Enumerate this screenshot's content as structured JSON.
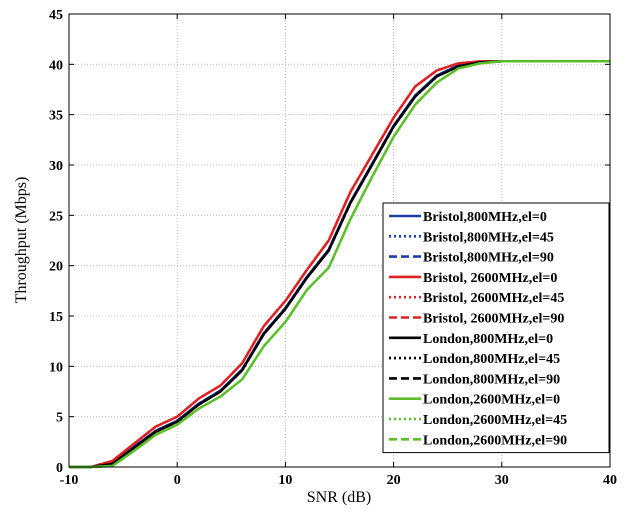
{
  "chart_data": {
    "type": "line",
    "title": "",
    "xlabel": "SNR  (dB)",
    "ylabel": "Throughput (Mbps)",
    "xlim": [
      -10,
      40
    ],
    "ylim": [
      0,
      45
    ],
    "xticks": [
      -10,
      0,
      10,
      20,
      30,
      40
    ],
    "yticks": [
      0,
      5,
      10,
      15,
      20,
      25,
      30,
      35,
      40,
      45
    ],
    "grid": true,
    "legend_position": "lower-right",
    "series": [
      {
        "name": "Bristol,800MHz,el=0",
        "color": "#1f3fa8",
        "dash": "solid",
        "group": "low",
        "x": [
          -10,
          -8,
          -6,
          -4,
          -2,
          0,
          2,
          4,
          6,
          8,
          10,
          12,
          14,
          16,
          18,
          20,
          22,
          24,
          26,
          28,
          30,
          32,
          35,
          40
        ],
        "y": [
          0,
          0,
          0.4,
          2,
          3.6,
          4.6,
          6.3,
          7.6,
          9.7,
          13.3,
          15.8,
          18.9,
          21.6,
          26.3,
          30.1,
          33.9,
          36.9,
          38.9,
          39.9,
          40.2,
          40.3,
          40.3,
          40.3,
          40.3
        ]
      },
      {
        "name": "Bristol,800MHz,el=45",
        "color": "#1f3fa8",
        "dash": "dot",
        "group": "low",
        "x": [
          -10,
          -8,
          -6,
          -4,
          -2,
          0,
          2,
          4,
          6,
          8,
          10,
          12,
          14,
          16,
          18,
          20,
          22,
          24,
          26,
          28,
          30,
          32,
          35,
          40
        ],
        "y": [
          0,
          0,
          0.4,
          2,
          3.6,
          4.6,
          6.3,
          7.6,
          9.7,
          13.3,
          15.8,
          18.9,
          21.6,
          26.3,
          30.1,
          33.9,
          36.9,
          38.9,
          39.9,
          40.2,
          40.3,
          40.3,
          40.3,
          40.3
        ]
      },
      {
        "name": "Bristol,800MHz,el=90",
        "color": "#1f3fa8",
        "dash": "dash",
        "group": "low",
        "x": [
          -10,
          -8,
          -6,
          -4,
          -2,
          0,
          2,
          4,
          6,
          8,
          10,
          12,
          14,
          16,
          18,
          20,
          22,
          24,
          26,
          28,
          30,
          32,
          35,
          40
        ],
        "y": [
          0,
          0,
          0.4,
          2,
          3.6,
          4.6,
          6.3,
          7.6,
          9.7,
          13.3,
          15.8,
          18.9,
          21.6,
          26.3,
          30.1,
          33.9,
          36.9,
          38.9,
          39.9,
          40.2,
          40.3,
          40.3,
          40.3,
          40.3
        ]
      },
      {
        "name": "Bristol, 2600MHz,el=0",
        "color": "#e02020",
        "dash": "solid",
        "group": "high",
        "x": [
          -10,
          -8,
          -6,
          -4,
          -2,
          0,
          2,
          4,
          6,
          8,
          10,
          12,
          14,
          16,
          18,
          20,
          22,
          24,
          26,
          28,
          30,
          32,
          35,
          40
        ],
        "y": [
          0,
          0,
          0.6,
          2.3,
          4,
          5,
          6.8,
          8.1,
          10.3,
          14,
          16.5,
          19.6,
          22.5,
          27.3,
          31,
          34.7,
          37.8,
          39.4,
          40.1,
          40.3,
          40.3,
          40.3,
          40.3,
          40.3
        ]
      },
      {
        "name": "Bristol, 2600MHz,el=45",
        "color": "#e02020",
        "dash": "dot",
        "group": "high",
        "x": [
          -10,
          -8,
          -6,
          -4,
          -2,
          0,
          2,
          4,
          6,
          8,
          10,
          12,
          14,
          16,
          18,
          20,
          22,
          24,
          26,
          28,
          30,
          32,
          35,
          40
        ],
        "y": [
          0,
          0,
          0.6,
          2.3,
          4,
          5,
          6.8,
          8.1,
          10.3,
          14,
          16.5,
          19.6,
          22.5,
          27.3,
          31,
          34.7,
          37.8,
          39.4,
          40.1,
          40.3,
          40.3,
          40.3,
          40.3,
          40.3
        ]
      },
      {
        "name": "Bristol, 2600MHz,el=90",
        "color": "#e02020",
        "dash": "dash",
        "group": "high",
        "x": [
          -10,
          -8,
          -6,
          -4,
          -2,
          0,
          2,
          4,
          6,
          8,
          10,
          12,
          14,
          16,
          18,
          20,
          22,
          24,
          26,
          28,
          30,
          32,
          35,
          40
        ],
        "y": [
          0,
          0,
          0.6,
          2.3,
          4,
          5,
          6.8,
          8.1,
          10.3,
          14,
          16.5,
          19.6,
          22.5,
          27.3,
          31,
          34.7,
          37.8,
          39.4,
          40.1,
          40.3,
          40.3,
          40.3,
          40.3,
          40.3
        ]
      },
      {
        "name": "London,800MHz,el=0",
        "color": "#000000",
        "dash": "solid",
        "group": "low",
        "x": [
          -10,
          -8,
          -6,
          -4,
          -2,
          0,
          2,
          4,
          6,
          8,
          10,
          12,
          14,
          16,
          18,
          20,
          22,
          24,
          26,
          28,
          30,
          32,
          35,
          40
        ],
        "y": [
          0,
          0,
          0.3,
          1.9,
          3.5,
          4.5,
          6.2,
          7.5,
          9.6,
          13.2,
          15.7,
          18.8,
          21.5,
          26.2,
          30,
          33.8,
          36.8,
          38.8,
          39.8,
          40.2,
          40.3,
          40.3,
          40.3,
          40.3
        ]
      },
      {
        "name": "London,800MHz,el=45",
        "color": "#000000",
        "dash": "dot",
        "group": "low",
        "x": [
          -10,
          -8,
          -6,
          -4,
          -2,
          0,
          2,
          4,
          6,
          8,
          10,
          12,
          14,
          16,
          18,
          20,
          22,
          24,
          26,
          28,
          30,
          32,
          35,
          40
        ],
        "y": [
          0,
          0,
          0.3,
          1.9,
          3.5,
          4.5,
          6.2,
          7.5,
          9.6,
          13.2,
          15.7,
          18.8,
          21.5,
          26.2,
          30,
          33.8,
          36.8,
          38.8,
          39.8,
          40.2,
          40.3,
          40.3,
          40.3,
          40.3
        ]
      },
      {
        "name": "London,800MHz,el=90",
        "color": "#000000",
        "dash": "dash",
        "group": "low",
        "x": [
          -10,
          -8,
          -6,
          -4,
          -2,
          0,
          2,
          4,
          6,
          8,
          10,
          12,
          14,
          16,
          18,
          20,
          22,
          24,
          26,
          28,
          30,
          32,
          35,
          40
        ],
        "y": [
          0,
          0,
          0.3,
          1.9,
          3.5,
          4.5,
          6.2,
          7.5,
          9.6,
          13.2,
          15.7,
          18.8,
          21.5,
          26.2,
          30,
          33.8,
          36.8,
          38.8,
          39.8,
          40.2,
          40.3,
          40.3,
          40.3,
          40.3
        ]
      },
      {
        "name": "London,2600MHz,el=0",
        "color": "#5cbf2a",
        "dash": "solid",
        "group": "high",
        "x": [
          -10,
          -8,
          -6,
          -4,
          -2,
          0,
          2,
          4,
          6,
          8,
          10,
          12,
          14,
          16,
          18,
          20,
          22,
          24,
          26,
          28,
          30,
          32,
          35,
          40
        ],
        "y": [
          0,
          0,
          0.1,
          1.6,
          3.2,
          4.2,
          5.8,
          7,
          8.7,
          12,
          14.4,
          17.6,
          19.8,
          24.6,
          28.8,
          32.8,
          36,
          38.2,
          39.6,
          40.1,
          40.3,
          40.3,
          40.3,
          40.3
        ]
      },
      {
        "name": "London,2600MHz,el=45",
        "color": "#5cbf2a",
        "dash": "dot",
        "group": "high",
        "x": [
          -10,
          -8,
          -6,
          -4,
          -2,
          0,
          2,
          4,
          6,
          8,
          10,
          12,
          14,
          16,
          18,
          20,
          22,
          24,
          26,
          28,
          30,
          32,
          35,
          40
        ],
        "y": [
          0,
          0,
          0.1,
          1.6,
          3.2,
          4.2,
          5.8,
          7,
          8.7,
          12,
          14.4,
          17.6,
          19.8,
          24.6,
          28.8,
          32.8,
          36,
          38.2,
          39.6,
          40.1,
          40.3,
          40.3,
          40.3,
          40.3
        ]
      },
      {
        "name": "London,2600MHz,el=90",
        "color": "#5cbf2a",
        "dash": "dash",
        "group": "high",
        "x": [
          -10,
          -8,
          -6,
          -4,
          -2,
          0,
          2,
          4,
          6,
          8,
          10,
          12,
          14,
          16,
          18,
          20,
          22,
          24,
          26,
          28,
          30,
          32,
          35,
          40
        ],
        "y": [
          0,
          0,
          0.1,
          1.6,
          3.2,
          4.2,
          5.8,
          7,
          8.7,
          12,
          14.4,
          17.6,
          19.8,
          24.6,
          28.8,
          32.8,
          36,
          38.2,
          39.6,
          40.1,
          40.3,
          40.3,
          40.3,
          40.3
        ]
      }
    ]
  }
}
